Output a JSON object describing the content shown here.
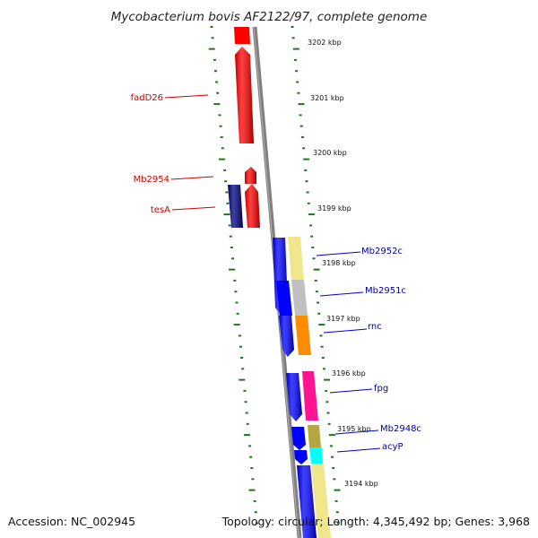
{
  "title": "Mycobacterium bovis AF2122/97, complete genome",
  "footer": {
    "accession": "Accession: NC_002945",
    "summary": "Topology: circular; Length: 4,345,492 bp; Genes: 3,968"
  },
  "colors": {
    "backbone": "#808080",
    "tick": "#1a7a1a",
    "reverse_label": "#cc0000",
    "forward_label": "#000099",
    "red": "#ff0000",
    "navy": "#000080",
    "blue": "#0000ff",
    "khaki": "#f0e68c",
    "silver": "#c0c0c0",
    "orange": "#ff8c00",
    "pink": "#ff1493",
    "olive": "#b5a642",
    "cyan": "#00ffff"
  },
  "ticks": [
    "3202 kbp",
    "3201 kbp",
    "3200 kbp",
    "3199 kbp",
    "3198 kbp",
    "3197 kbp",
    "3196 kbp",
    "3195 kbp",
    "3194 kbp"
  ],
  "labels": {
    "fadD26": "fadD26",
    "Mb2954": "Mb2954",
    "tesA": "tesA",
    "Mb2952c": "Mb2952c",
    "Mb2951c": "Mb2951c",
    "rnc": "rnc",
    "fpg": "fpg",
    "Mb2948c": "Mb2948c",
    "acyP": "acyP"
  }
}
